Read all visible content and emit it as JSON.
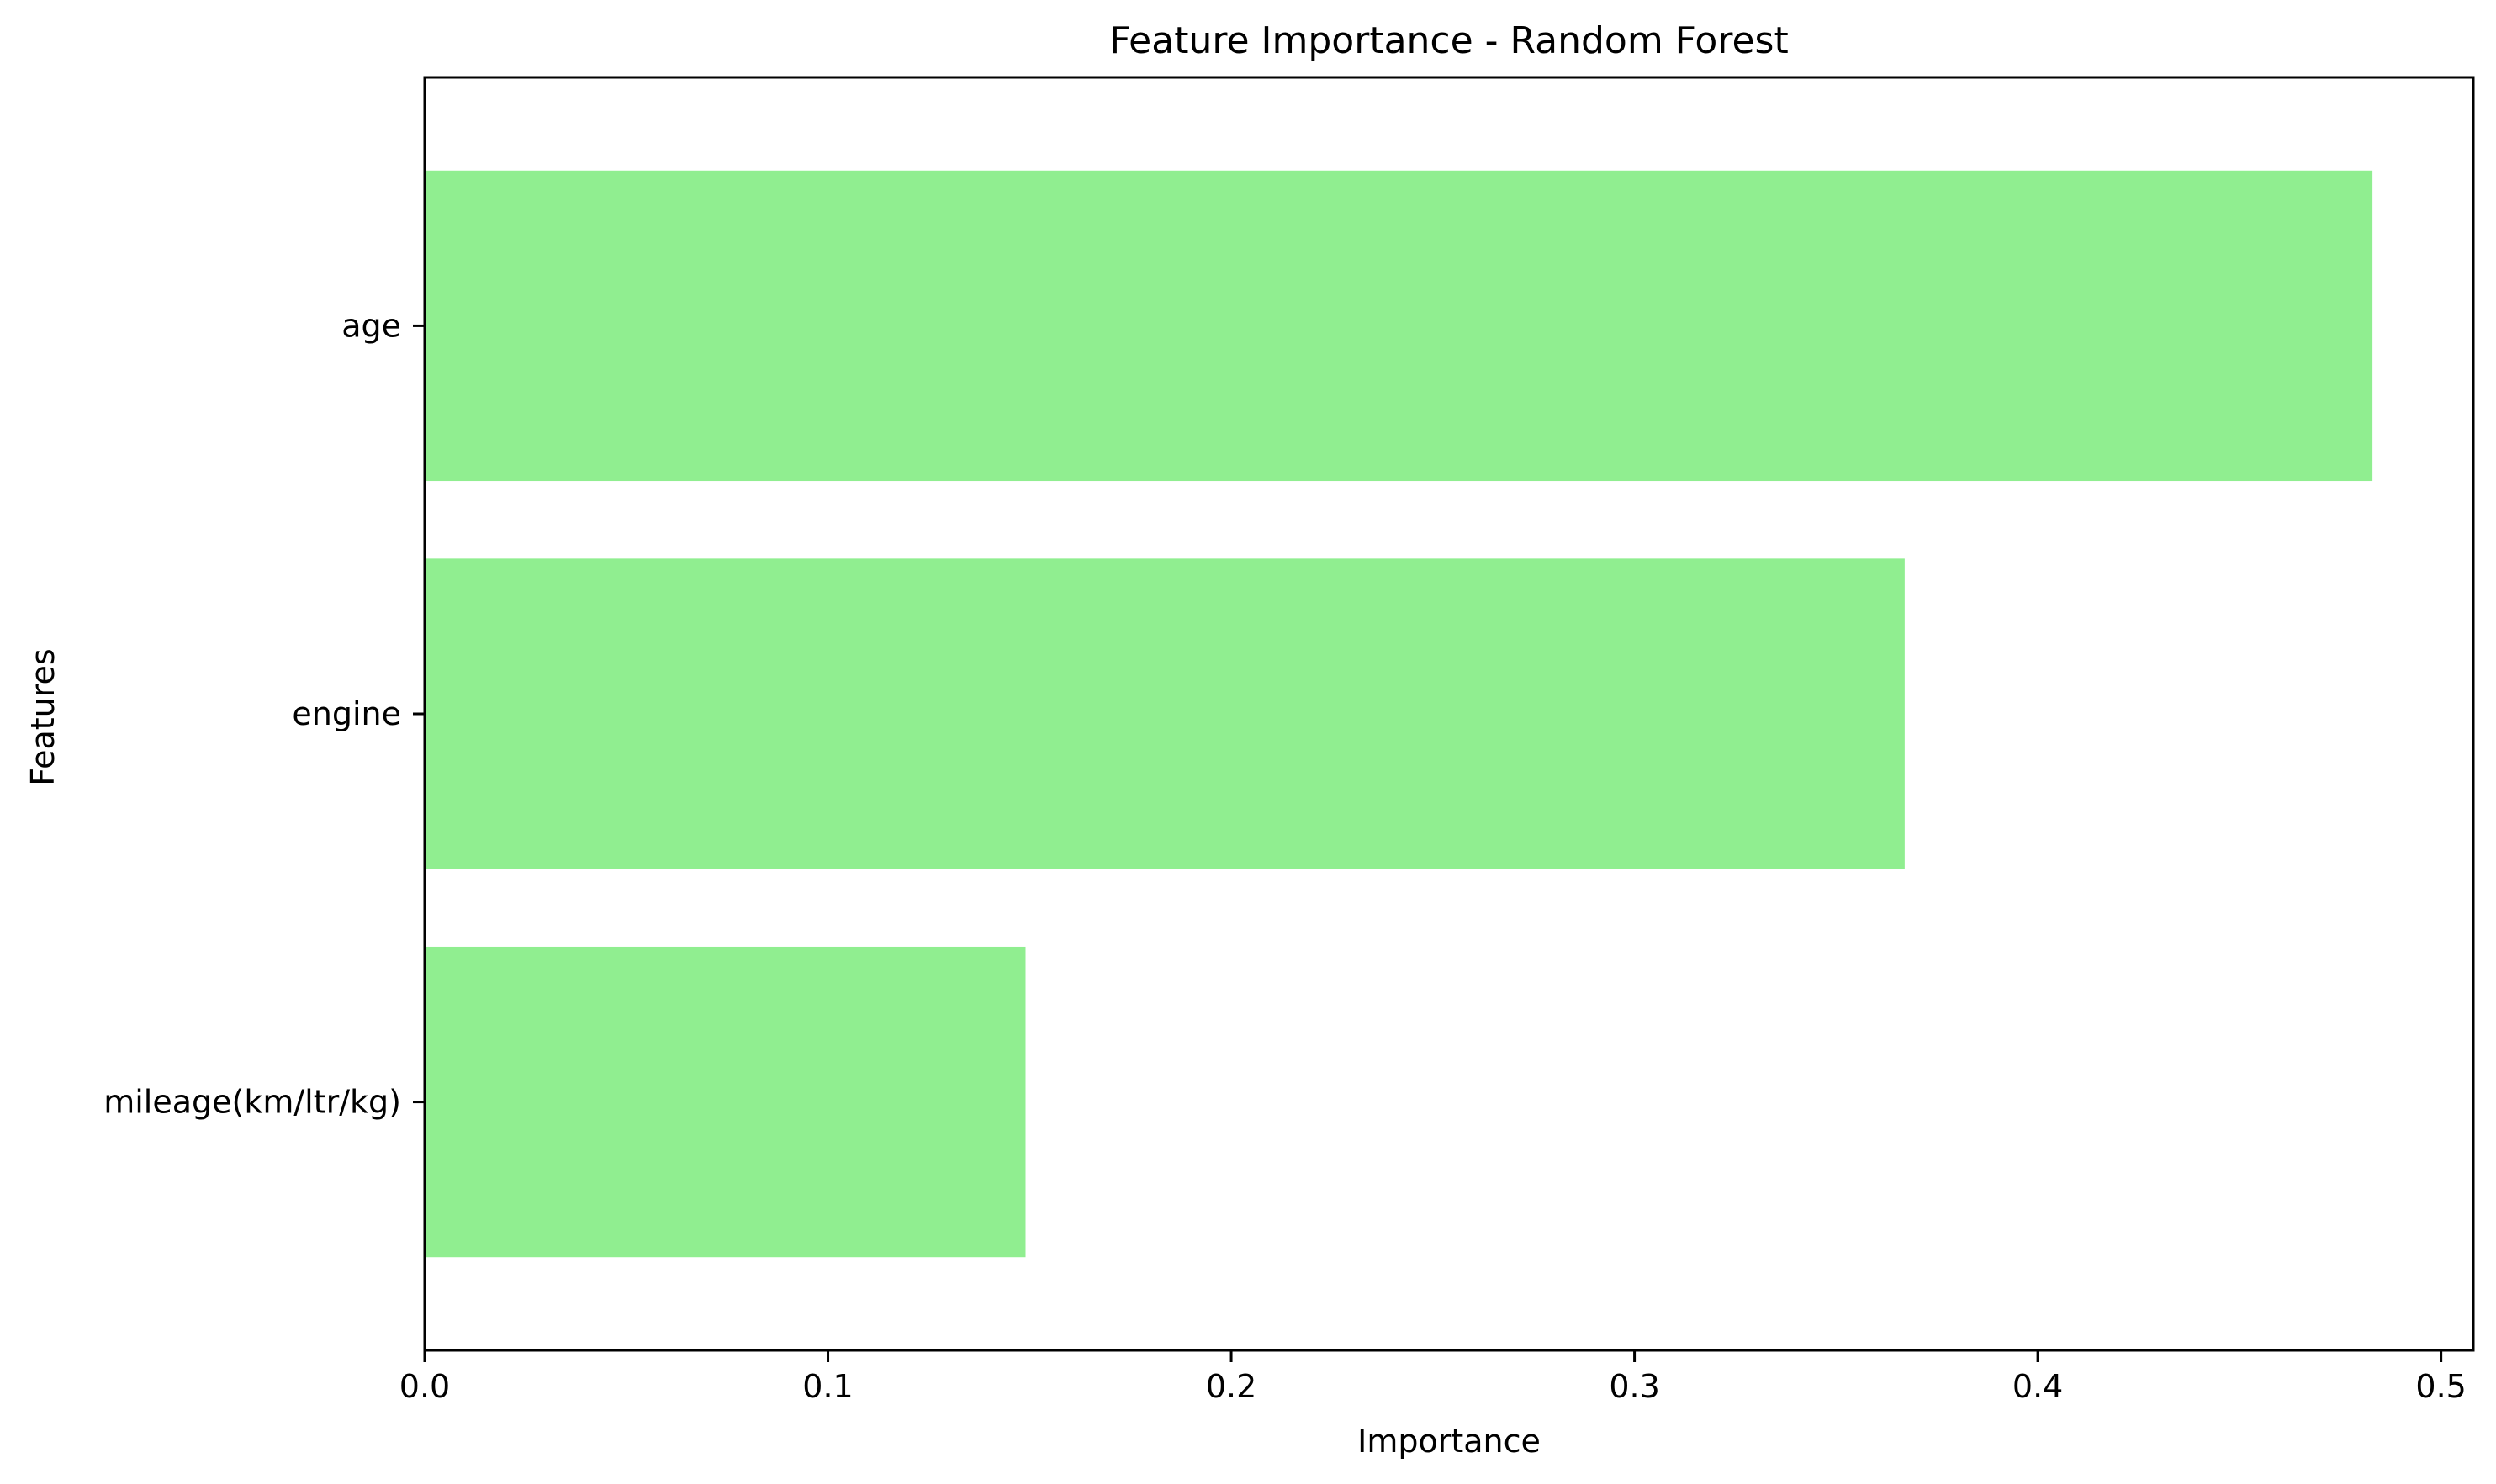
{
  "chart_data": {
    "type": "bar",
    "orientation": "horizontal",
    "title": "Feature Importance - Random Forest",
    "xlabel": "Importance",
    "ylabel": "Features",
    "categories": [
      "age",
      "engine",
      "mileage(km/ltr/kg)"
    ],
    "values": [
      0.483,
      0.367,
      0.149
    ],
    "xlim": [
      0.0,
      0.508
    ],
    "xticks": [
      0.0,
      0.1,
      0.2,
      0.3,
      0.4,
      0.5
    ],
    "xtick_labels": [
      "0.0",
      "0.1",
      "0.2",
      "0.3",
      "0.4",
      "0.5"
    ],
    "grid": false,
    "bar_color": "#90EE90"
  }
}
